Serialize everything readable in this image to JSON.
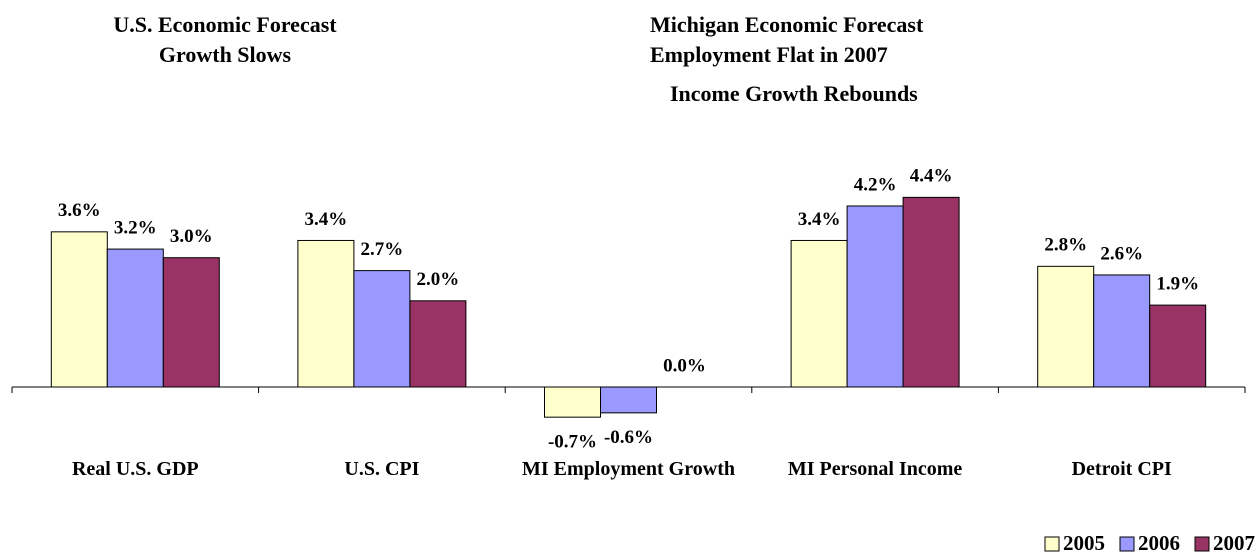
{
  "chart_data": {
    "type": "bar",
    "titles": [
      {
        "lines": [
          "U.S. Economic Forecast",
          "Growth Slows"
        ]
      },
      {
        "lines": [
          "Michigan Economic Forecast",
          "Employment Flat in 2007",
          "Income Growth Rebounds"
        ]
      }
    ],
    "categories": [
      "Real U.S. GDP",
      "U.S. CPI",
      "MI Employment Growth",
      "MI Personal Income",
      "Detroit CPI"
    ],
    "series": [
      {
        "name": "2005",
        "color": "#ffffcc",
        "values": [
          3.6,
          3.4,
          -0.7,
          3.4,
          2.8
        ],
        "value_labels": [
          "3.6%",
          "3.4%",
          "-0.7%",
          "3.4%",
          "2.8%"
        ]
      },
      {
        "name": "2006",
        "color": "#9999ff",
        "values": [
          3.2,
          2.7,
          -0.6,
          4.2,
          2.6
        ],
        "value_labels": [
          "3.2%",
          "2.7%",
          "-0.6%",
          "4.2%",
          "2.6%"
        ]
      },
      {
        "name": "2007",
        "color": "#993366",
        "values": [
          3.0,
          2.0,
          0.0,
          4.4,
          1.9
        ],
        "value_labels": [
          "3.0%",
          "2.0%",
          "0.0%",
          "4.4%",
          "1.9%"
        ]
      }
    ],
    "legend": "bottom-right"
  }
}
